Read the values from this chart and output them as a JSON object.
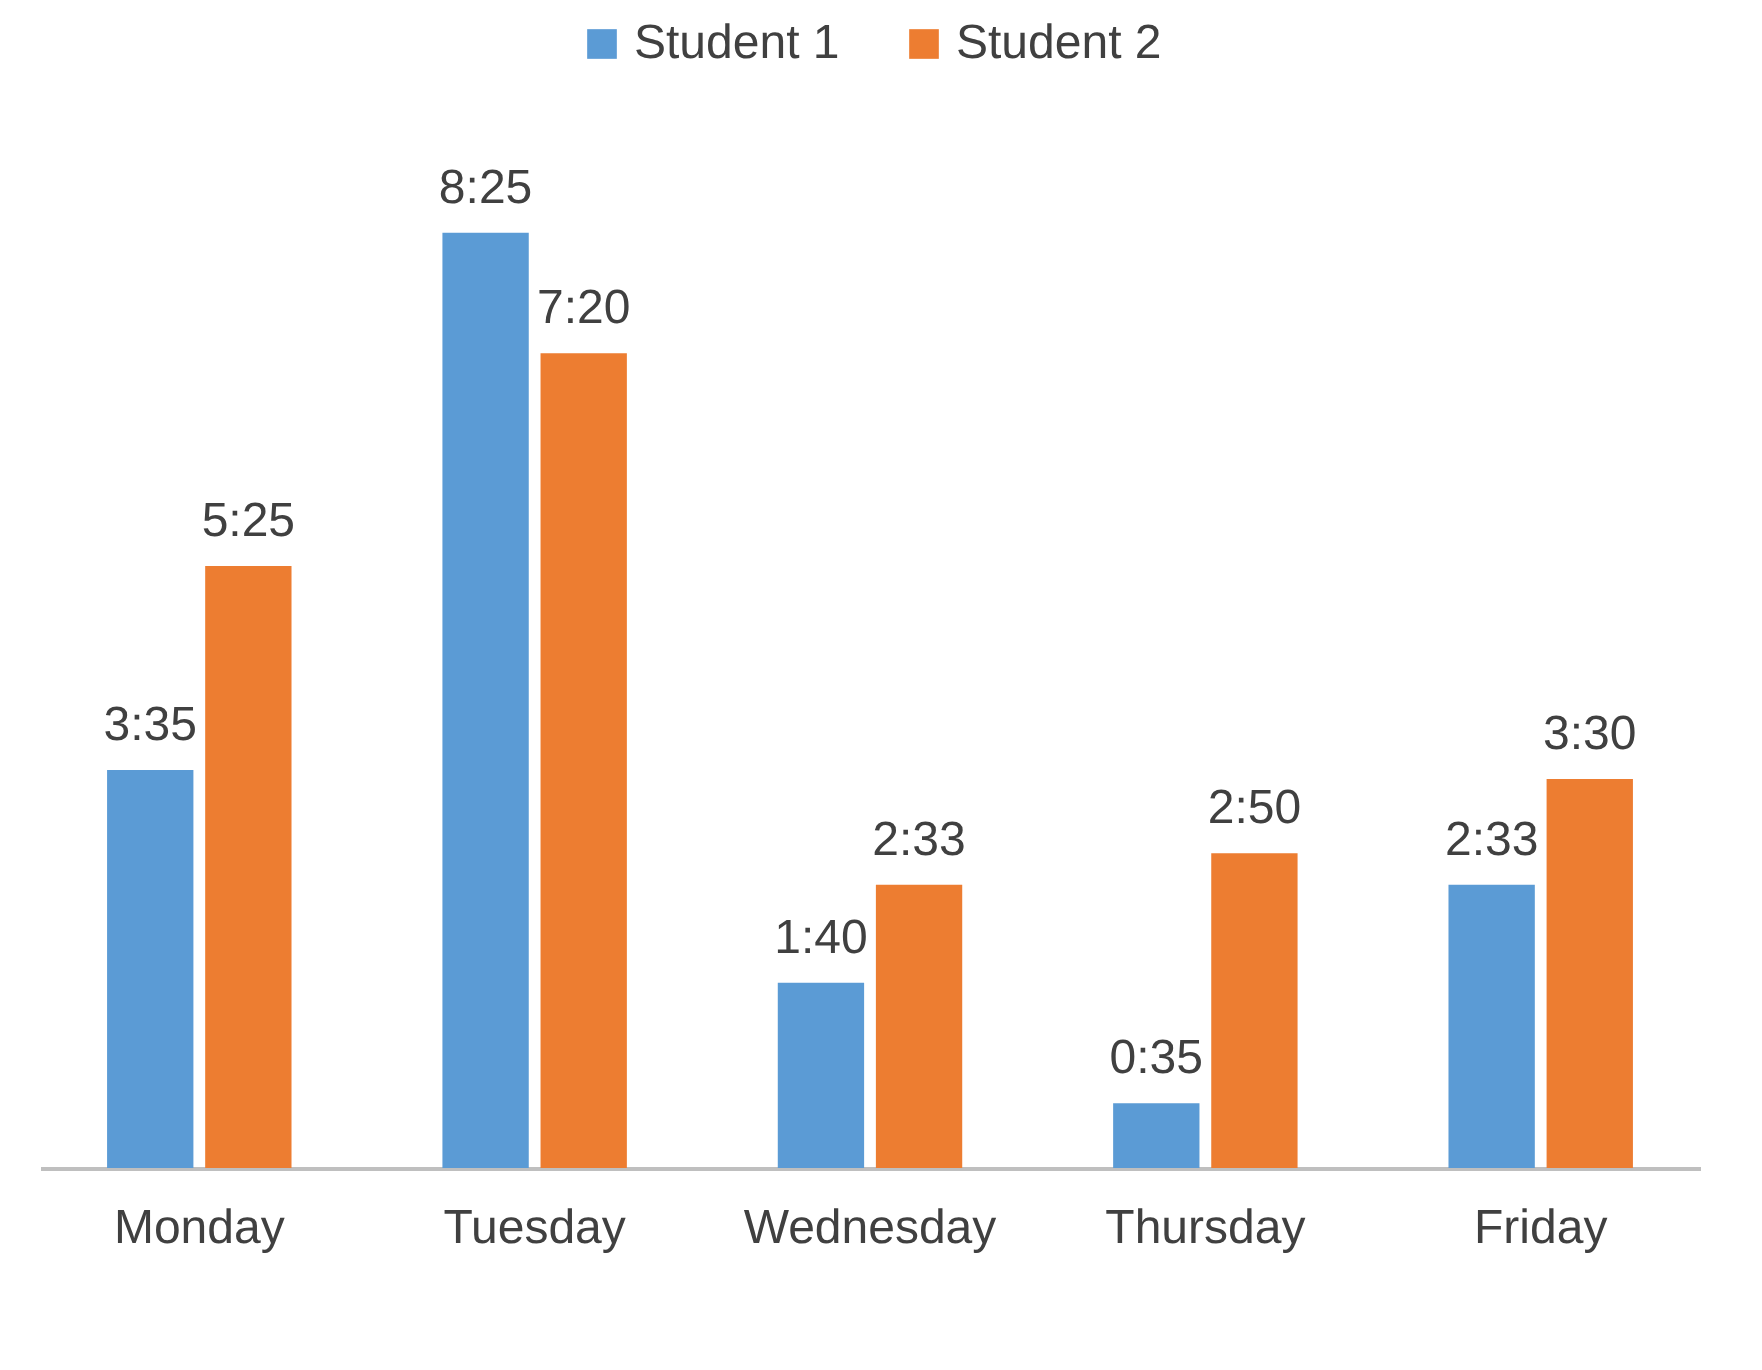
{
  "chart_data": {
    "type": "bar",
    "categories": [
      "Monday",
      "Tuesday",
      "Wednesday",
      "Thursday",
      "Friday"
    ],
    "series": [
      {
        "name": "Student 1",
        "color": "#5b9bd5",
        "values": [
          3.583,
          8.417,
          1.667,
          0.583,
          2.55
        ],
        "value_labels": [
          "3:35",
          "8:25",
          "1:40",
          "0:35",
          "2:33"
        ]
      },
      {
        "name": "Student 2",
        "color": "#ed7d31",
        "values": [
          5.417,
          7.333,
          2.55,
          2.833,
          3.5
        ],
        "value_labels": [
          "5:25",
          "7:20",
          "2:33",
          "2:50",
          "3:30"
        ]
      }
    ],
    "legend": "top",
    "tick_labels": "x",
    "grid": false
  }
}
